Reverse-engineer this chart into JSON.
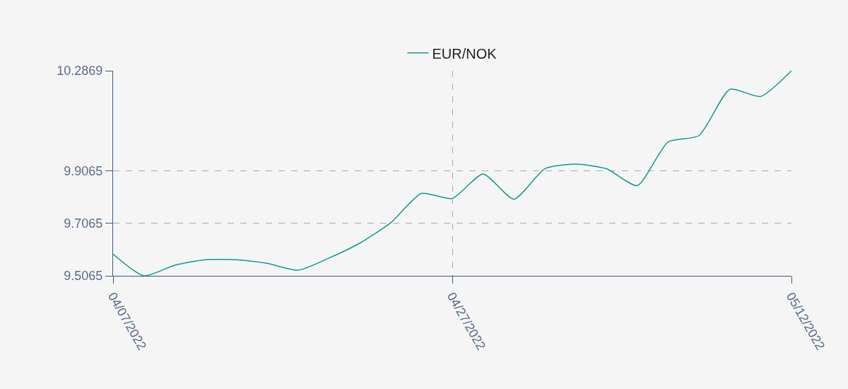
{
  "chart_data": {
    "type": "line",
    "categories": [
      "04/07/2022",
      null,
      null,
      null,
      null,
      null,
      null,
      null,
      null,
      null,
      null,
      "04/27/2022",
      null,
      null,
      null,
      null,
      null,
      null,
      null,
      null,
      null,
      null,
      "05/12/2022"
    ],
    "series": [
      {
        "name": "EUR/NOK",
        "color": "#11998e",
        "values": [
          9.589,
          9.5065,
          9.547,
          9.568,
          9.568,
          9.554,
          9.528,
          9.574,
          9.631,
          9.708,
          9.82,
          9.801,
          9.894,
          9.798,
          9.914,
          9.932,
          9.914,
          9.85,
          10.016,
          10.04,
          10.216,
          10.189,
          10.2869
        ]
      }
    ],
    "ylim": [
      9.5065,
      10.2869
    ],
    "yticks": [
      9.5065,
      9.7065,
      9.9065,
      10.2869
    ],
    "grid": true,
    "legend": "top",
    "marker": "none",
    "line_style": "solid"
  }
}
